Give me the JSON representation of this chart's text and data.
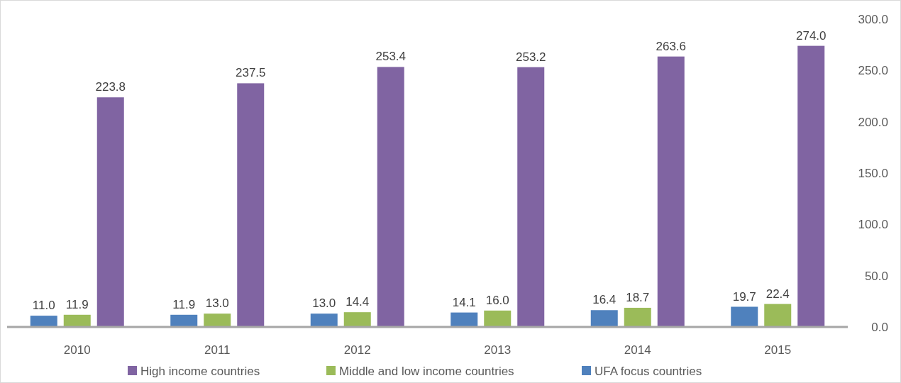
{
  "chart_data": {
    "type": "bar",
    "categories": [
      "2010",
      "2011",
      "2012",
      "2013",
      "2014",
      "2015"
    ],
    "series": [
      {
        "name": "UFA focus countries",
        "color": "#4f81bd",
        "values": [
          11.0,
          11.9,
          13.0,
          14.1,
          16.4,
          19.7
        ],
        "value_labels": [
          "11.0",
          "11.9",
          "13.0",
          "14.1",
          "16.4",
          "19.7"
        ]
      },
      {
        "name": "Middle and low income countries",
        "color": "#9bbb59",
        "values": [
          11.9,
          13.0,
          14.4,
          16.0,
          18.7,
          22.4
        ],
        "value_labels": [
          "11.9",
          "13.0",
          "14.4",
          "16.0",
          "18.7",
          "22.4"
        ]
      },
      {
        "name": "High income countries",
        "color": "#8064a2",
        "values": [
          223.8,
          237.5,
          253.4,
          253.2,
          263.6,
          274.0
        ],
        "value_labels": [
          "223.8",
          "237.5",
          "253.4",
          "253.2",
          "263.6",
          "274.0"
        ]
      }
    ],
    "ylim": [
      0,
      300
    ],
    "yticks": [
      {
        "value": 0,
        "label": "0.0"
      },
      {
        "value": 50,
        "label": "50.0"
      },
      {
        "value": 100,
        "label": "100.0"
      },
      {
        "value": 150,
        "label": "150.0"
      },
      {
        "value": 200,
        "label": "200.0"
      },
      {
        "value": 250,
        "label": "250.0"
      },
      {
        "value": 300,
        "label": "300.0"
      }
    ],
    "grid": false,
    "legend": "bottom"
  }
}
